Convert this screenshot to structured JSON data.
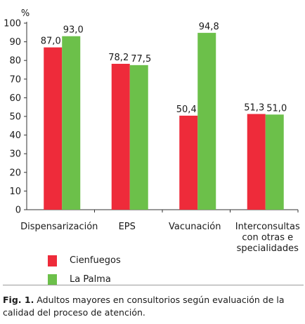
{
  "chart_data": {
    "type": "bar",
    "ylabel": "%",
    "ylim": [
      0,
      100
    ],
    "yticks": [
      "0",
      "10",
      "20",
      "30",
      "40",
      "50",
      "60",
      "70",
      "80",
      "90",
      "100"
    ],
    "categories": [
      [
        "Dispensarización"
      ],
      [
        "EPS"
      ],
      [
        "Vacunación"
      ],
      [
        "Interconsultas",
        "con otras e",
        "specialidades"
      ]
    ],
    "series": [
      {
        "name": "Cienfuegos",
        "color": "#ee2b3a",
        "values": [
          87.0,
          78.2,
          50.4,
          51.3
        ],
        "labels": [
          "87,0",
          "78,2",
          "50,4",
          "51,3"
        ]
      },
      {
        "name": "La Palma",
        "color": "#6cc04a",
        "values": [
          93.0,
          77.5,
          94.8,
          51.0
        ],
        "labels": [
          "93,0",
          "77,5",
          "94,8",
          "51,0"
        ]
      }
    ],
    "legend_position": "bottom-left",
    "grid": false
  },
  "caption": {
    "label": "Fig. 1.",
    "text": " Adultos mayores en consultorios según evaluación de la calidad del proceso de atención."
  }
}
